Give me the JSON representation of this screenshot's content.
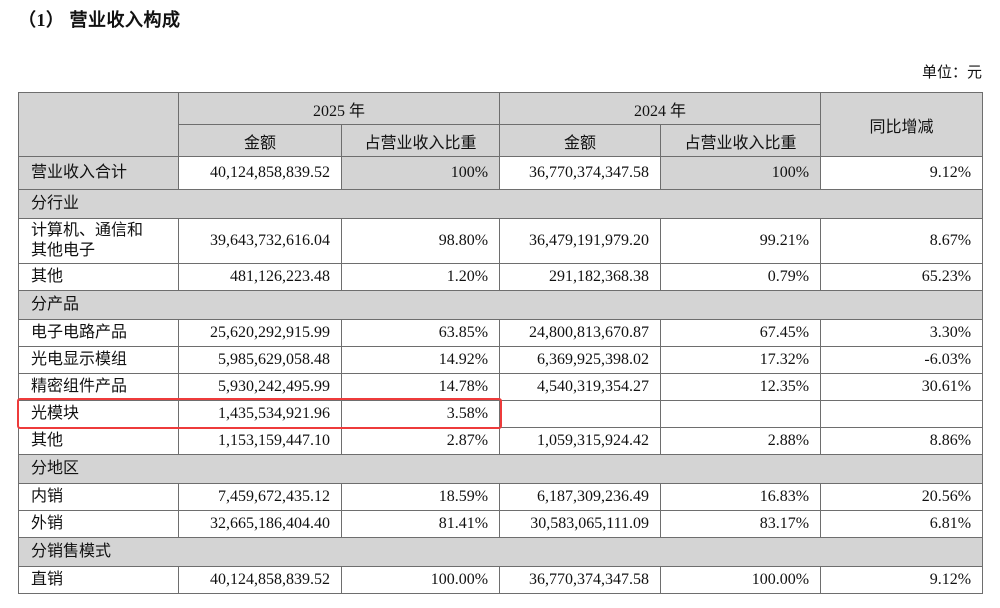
{
  "title": "（1） 营业收入构成",
  "unit_label": "单位：元",
  "colors": {
    "header_gray": "#d4d4d4",
    "border_gray": "#6e6e6e",
    "highlight_red": "#ee3b3b"
  },
  "table": {
    "headers": {
      "year_2025": "2025 年",
      "year_2024": "2024 年",
      "amount": "金额",
      "proportion": "占营业收入比重",
      "yoy": "同比增减"
    },
    "rows": [
      {
        "type": "data",
        "label": "营业收入合计",
        "a2025": "40,124,858,839.52",
        "p2025": "100%",
        "a2024": "36,770,374,347.58",
        "p2024": "100%",
        "yoy": "9.12%",
        "shaded": true,
        "first": true
      },
      {
        "type": "section",
        "label": "分行业"
      },
      {
        "type": "data",
        "label": "计算机、通信和其他电子",
        "a2025": "39,643,732,616.04",
        "p2025": "98.80%",
        "a2024": "36,479,191,979.20",
        "p2024": "99.21%",
        "yoy": "8.67%",
        "tall": true
      },
      {
        "type": "data",
        "label": "其他",
        "a2025": "481,126,223.48",
        "p2025": "1.20%",
        "a2024": "291,182,368.38",
        "p2024": "0.79%",
        "yoy": "65.23%"
      },
      {
        "type": "section",
        "label": "分产品"
      },
      {
        "type": "data",
        "label": "电子电路产品",
        "a2025": "25,620,292,915.99",
        "p2025": "63.85%",
        "a2024": "24,800,813,670.87",
        "p2024": "67.45%",
        "yoy": "3.30%"
      },
      {
        "type": "data",
        "label": "光电显示模组",
        "a2025": "5,985,629,058.48",
        "p2025": "14.92%",
        "a2024": "6,369,925,398.02",
        "p2024": "17.32%",
        "yoy": "-6.03%"
      },
      {
        "type": "data",
        "label": "精密组件产品",
        "a2025": "5,930,242,495.99",
        "p2025": "14.78%",
        "a2024": "4,540,319,354.27",
        "p2024": "12.35%",
        "yoy": "30.61%"
      },
      {
        "type": "data",
        "label": "光模块",
        "a2025": "1,435,534,921.96",
        "p2025": "3.58%",
        "a2024": "",
        "p2024": "",
        "yoy": "",
        "highlight": true
      },
      {
        "type": "data",
        "label": "其他",
        "a2025": "1,153,159,447.10",
        "p2025": "2.87%",
        "a2024": "1,059,315,924.42",
        "p2024": "2.88%",
        "yoy": "8.86%"
      },
      {
        "type": "section",
        "label": "分地区"
      },
      {
        "type": "data",
        "label": "内销",
        "a2025": "7,459,672,435.12",
        "p2025": "18.59%",
        "a2024": "6,187,309,236.49",
        "p2024": "16.83%",
        "yoy": "20.56%"
      },
      {
        "type": "data",
        "label": "外销",
        "a2025": "32,665,186,404.40",
        "p2025": "81.41%",
        "a2024": "30,583,065,111.09",
        "p2024": "83.17%",
        "yoy": "6.81%"
      },
      {
        "type": "section",
        "label": "分销售模式"
      },
      {
        "type": "data",
        "label": "直销",
        "a2025": "40,124,858,839.52",
        "p2025": "100.00%",
        "a2024": "36,770,374,347.58",
        "p2024": "100.00%",
        "yoy": "9.12%"
      }
    ]
  }
}
